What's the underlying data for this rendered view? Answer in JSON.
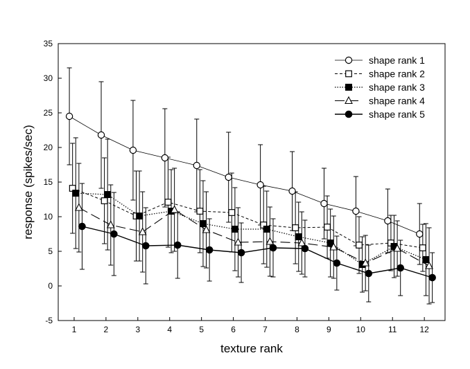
{
  "chart_data": {
    "type": "line",
    "title": "",
    "xlabel": "texture rank",
    "ylabel": "response (spikes/sec)",
    "xlim": [
      0.5,
      12.65
    ],
    "ylim": [
      -5,
      35
    ],
    "x_ticks": [
      1,
      2,
      3,
      4,
      5,
      6,
      7,
      8,
      9,
      10,
      11,
      12
    ],
    "y_ticks": [
      -5,
      0,
      5,
      10,
      15,
      20,
      25,
      30,
      35
    ],
    "x_tick_labels": [
      "1",
      "2",
      "3",
      "4",
      "5",
      "6",
      "7",
      "8",
      "9",
      "10",
      "11",
      "12"
    ],
    "y_tick_labels": [
      "-5",
      "0",
      "5",
      "10",
      "15",
      "20",
      "25",
      "30",
      "35"
    ],
    "grid": false,
    "legend_position": "top-right",
    "series": [
      {
        "name": "shape rank 1",
        "marker": "open-circle",
        "line_style": "thin-solid",
        "x": [
          0.85,
          1.85,
          2.85,
          3.85,
          4.85,
          5.85,
          6.85,
          7.85,
          8.85,
          9.85,
          10.85,
          11.85
        ],
        "values": [
          24.5,
          21.8,
          19.6,
          18.5,
          17.4,
          15.7,
          14.6,
          13.7,
          11.9,
          10.8,
          9.4,
          7.5
        ],
        "errors": [
          7.0,
          7.7,
          7.2,
          7.1,
          6.7,
          6.5,
          5.8,
          5.7,
          5.1,
          5.0,
          4.6,
          4.4
        ]
      },
      {
        "name": "shape rank 2",
        "marker": "open-square",
        "line_style": "dashed",
        "x": [
          0.95,
          1.95,
          2.95,
          3.95,
          4.95,
          5.95,
          6.95,
          7.95,
          8.95,
          9.95,
          10.95,
          11.95
        ],
        "values": [
          14.1,
          12.3,
          10.1,
          12.1,
          10.8,
          10.6,
          8.8,
          8.4,
          8.5,
          5.9,
          6.2,
          5.5
        ],
        "errors": [
          6.5,
          6.2,
          6.5,
          6.5,
          6.0,
          5.7,
          5.6,
          5.2,
          4.5,
          4.1,
          4.0,
          3.4
        ]
      },
      {
        "name": "shape rank 3",
        "marker": "filled-square",
        "line_style": "dotted",
        "x": [
          1.05,
          2.05,
          3.05,
          4.05,
          5.05,
          6.05,
          7.05,
          8.05,
          9.05,
          10.05,
          11.05,
          12.05
        ],
        "values": [
          13.4,
          13.2,
          10.1,
          10.8,
          9.0,
          8.2,
          8.2,
          7.1,
          6.2,
          3.1,
          5.7,
          3.8
        ],
        "errors": [
          8.0,
          8.0,
          6.5,
          6.0,
          6.2,
          6.0,
          5.5,
          5.0,
          4.9,
          4.0,
          4.5,
          5.2
        ]
      },
      {
        "name": "shape rank 4",
        "marker": "open-triangle",
        "line_style": "long-dash",
        "x": [
          1.15,
          2.15,
          3.15,
          4.15,
          5.15,
          6.15,
          7.15,
          8.15,
          9.15,
          10.15,
          11.15,
          12.15
        ],
        "values": [
          11.3,
          8.8,
          7.8,
          11.0,
          8.1,
          6.3,
          6.4,
          6.2,
          5.6,
          3.3,
          5.4,
          2.9
        ],
        "errors": [
          6.4,
          5.8,
          5.8,
          6.0,
          5.5,
          5.0,
          5.0,
          4.5,
          4.5,
          4.0,
          4.0,
          5.5
        ]
      },
      {
        "name": "shape rank 5",
        "marker": "filled-circle",
        "line_style": "solid",
        "x": [
          1.25,
          2.25,
          3.25,
          4.25,
          5.25,
          6.25,
          7.25,
          8.25,
          9.25,
          10.25,
          11.25,
          12.25
        ],
        "values": [
          8.6,
          7.5,
          5.8,
          5.9,
          5.2,
          4.8,
          5.5,
          5.4,
          3.3,
          1.8,
          2.6,
          1.2
        ],
        "errors": [
          6.2,
          6.0,
          5.5,
          4.8,
          4.5,
          4.3,
          4.2,
          4.1,
          3.9,
          4.1,
          4.0,
          3.6
        ]
      }
    ]
  }
}
